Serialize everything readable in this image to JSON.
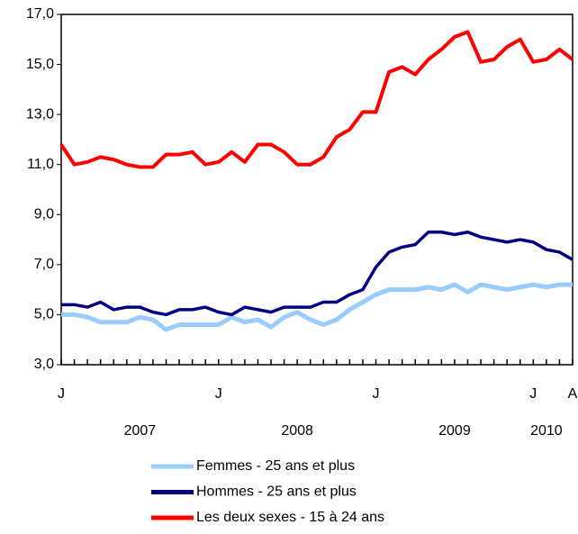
{
  "chart_data": {
    "type": "line",
    "categories": [
      "J",
      null,
      null,
      null,
      null,
      null,
      null,
      null,
      null,
      null,
      null,
      null,
      "J",
      null,
      null,
      null,
      null,
      null,
      null,
      null,
      null,
      null,
      null,
      null,
      "J",
      null,
      null,
      null,
      null,
      null,
      null,
      null,
      null,
      null,
      null,
      null,
      "J",
      null,
      null,
      "A"
    ],
    "year_labels": [
      null,
      null,
      null,
      null,
      null,
      null,
      "2007",
      null,
      null,
      null,
      null,
      null,
      null,
      null,
      null,
      null,
      null,
      null,
      "2008",
      null,
      null,
      null,
      null,
      null,
      null,
      null,
      null,
      null,
      null,
      null,
      "2009",
      null,
      null,
      null,
      null,
      null,
      null,
      "2010",
      null,
      null
    ],
    "ylim": [
      3,
      17
    ],
    "yticks": [
      {
        "value": 3,
        "label": "3,0"
      },
      {
        "value": 5,
        "label": "5,0"
      },
      {
        "value": 7,
        "label": "7,0"
      },
      {
        "value": 9,
        "label": "9,0"
      },
      {
        "value": 11,
        "label": "11,0"
      },
      {
        "value": 13,
        "label": "13,0"
      },
      {
        "value": 15,
        "label": "15,0"
      },
      {
        "value": 17,
        "label": "17,0"
      }
    ],
    "grid": false,
    "series": [
      {
        "name": "Femmes - 25 ans et plus",
        "color": "#99ccff",
        "values": [
          5.0,
          5.0,
          4.9,
          4.7,
          4.7,
          4.7,
          4.9,
          4.8,
          4.4,
          4.6,
          4.6,
          4.6,
          4.6,
          4.9,
          4.7,
          4.8,
          4.5,
          4.9,
          5.1,
          4.8,
          4.6,
          4.8,
          5.2,
          5.5,
          5.8,
          6.0,
          6.0,
          6.0,
          6.1,
          6.0,
          6.2,
          5.9,
          6.2,
          6.1,
          6.0,
          6.1,
          6.2,
          6.1,
          6.2,
          6.2
        ]
      },
      {
        "name": "Hommes - 25 ans et plus",
        "color": "#000080",
        "values": [
          5.4,
          5.4,
          5.3,
          5.5,
          5.2,
          5.3,
          5.3,
          5.1,
          5.0,
          5.2,
          5.2,
          5.3,
          5.1,
          5.0,
          5.3,
          5.2,
          5.1,
          5.3,
          5.3,
          5.3,
          5.5,
          5.5,
          5.8,
          6.0,
          6.9,
          7.5,
          7.7,
          7.8,
          8.3,
          8.3,
          8.2,
          8.3,
          8.1,
          8.0,
          7.9,
          8.0,
          7.9,
          7.6,
          7.5,
          7.2
        ]
      },
      {
        "name": "Les deux sexes - 15 à 24 ans",
        "color": "#ff0000",
        "values": [
          11.8,
          11.0,
          11.1,
          11.3,
          11.2,
          11.0,
          10.9,
          10.9,
          11.4,
          11.4,
          11.5,
          11.0,
          11.1,
          11.5,
          11.1,
          11.8,
          11.8,
          11.5,
          11.0,
          11.0,
          11.3,
          12.1,
          12.4,
          13.1,
          13.1,
          14.7,
          14.9,
          14.6,
          15.2,
          15.6,
          16.1,
          16.3,
          15.1,
          15.2,
          15.7,
          16.0,
          15.1,
          15.2,
          15.6,
          15.2
        ]
      }
    ]
  }
}
